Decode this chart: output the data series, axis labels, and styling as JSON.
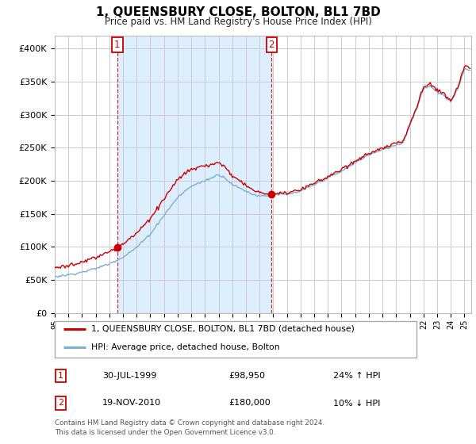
{
  "title": "1, QUEENSBURY CLOSE, BOLTON, BL1 7BD",
  "subtitle": "Price paid vs. HM Land Registry's House Price Index (HPI)",
  "property_label": "1, QUEENSBURY CLOSE, BOLTON, BL1 7BD (detached house)",
  "hpi_label": "HPI: Average price, detached house, Bolton",
  "sale1_date": "30-JUL-1999",
  "sale1_price": 98950,
  "sale1_hpi": "24% ↑ HPI",
  "sale2_date": "19-NOV-2010",
  "sale2_price": 180000,
  "sale2_hpi": "10% ↓ HPI",
  "footer": "Contains HM Land Registry data © Crown copyright and database right 2024.\nThis data is licensed under the Open Government Licence v3.0.",
  "ylim": [
    0,
    420000
  ],
  "yticks": [
    0,
    50000,
    100000,
    150000,
    200000,
    250000,
    300000,
    350000,
    400000
  ],
  "property_color": "#cc0000",
  "hpi_color": "#7ab0d4",
  "shade_color": "#ddeeff",
  "marker1_x": 1999.58,
  "marker1_y": 98950,
  "marker2_x": 2010.88,
  "marker2_y": 180000,
  "vline1_x": 1999.58,
  "vline2_x": 2010.88,
  "bg_color": "#ffffff",
  "grid_color": "#cccccc",
  "xmin": 1995,
  "xmax": 2025.5
}
